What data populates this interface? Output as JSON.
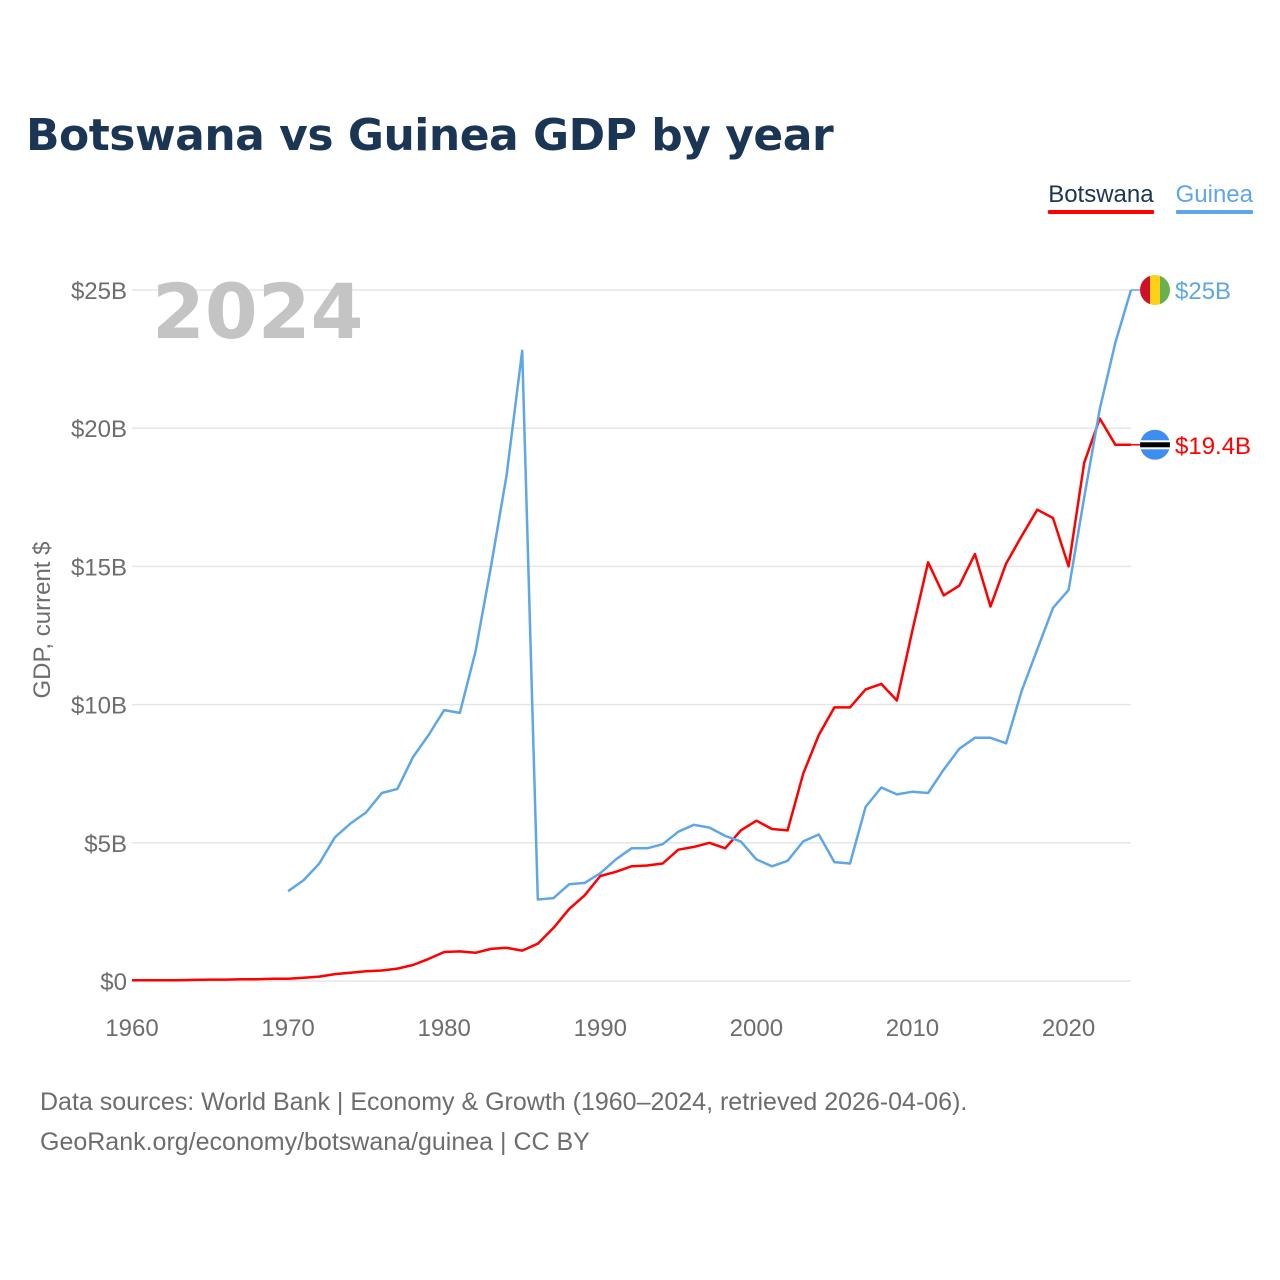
{
  "header": {
    "title": "Botswana vs Guinea GDP by year"
  },
  "legend": [
    {
      "label": "Botswana",
      "color": "#ff0000"
    },
    {
      "label": "Guinea",
      "color": "#5fa6e8"
    }
  ],
  "source": {
    "line1": "Data sources: World Bank | Economy & Growth (1960–2024, retrieved 2026-04-06).",
    "line2": "GeoRank.org/economy/botswana/guinea | CC BY"
  },
  "chart_data": {
    "type": "line",
    "title": "Botswana vs Guinea GDP by year",
    "ylabel": "GDP, current $",
    "xlabel": "",
    "year_watermark": "2024",
    "xlim": [
      1960,
      2024
    ],
    "ylim": [
      0,
      25
    ],
    "x_ticks": [
      1960,
      1970,
      1980,
      1990,
      2000,
      2010,
      2020
    ],
    "y_ticks": [
      0,
      5,
      10,
      15,
      20,
      25
    ],
    "y_tick_labels": [
      "$0",
      "$5B",
      "$10B",
      "$15B",
      "$20B",
      "$25B"
    ],
    "grid": true,
    "series": [
      {
        "name": "Botswana",
        "color": "#ff0000",
        "end_label": "$19.4B",
        "flag": "botswana",
        "x": [
          1960,
          1961,
          1962,
          1963,
          1964,
          1965,
          1966,
          1967,
          1968,
          1969,
          1970,
          1971,
          1972,
          1973,
          1974,
          1975,
          1976,
          1977,
          1978,
          1979,
          1980,
          1981,
          1982,
          1983,
          1984,
          1985,
          1986,
          1987,
          1988,
          1989,
          1990,
          1991,
          1992,
          1993,
          1994,
          1995,
          1996,
          1997,
          1998,
          1999,
          2000,
          2001,
          2002,
          2003,
          2004,
          2005,
          2006,
          2007,
          2008,
          2009,
          2010,
          2011,
          2012,
          2013,
          2014,
          2015,
          2016,
          2017,
          2018,
          2019,
          2020,
          2021,
          2022,
          2023,
          2024
        ],
        "values": [
          0.03,
          0.03,
          0.03,
          0.03,
          0.04,
          0.05,
          0.05,
          0.06,
          0.06,
          0.08,
          0.08,
          0.12,
          0.16,
          0.25,
          0.3,
          0.35,
          0.38,
          0.45,
          0.58,
          0.8,
          1.05,
          1.07,
          1.02,
          1.16,
          1.2,
          1.1,
          1.35,
          1.92,
          2.6,
          3.1,
          3.8,
          3.95,
          4.15,
          4.18,
          4.25,
          4.75,
          4.85,
          5.0,
          4.8,
          5.45,
          5.8,
          5.5,
          5.45,
          7.5,
          8.9,
          9.9,
          9.9,
          10.55,
          10.75,
          10.15,
          12.7,
          15.15,
          13.95,
          14.3,
          15.45,
          13.55,
          15.1,
          16.1,
          17.05,
          16.75,
          15.0,
          18.75,
          20.35,
          19.4,
          19.4
        ]
      },
      {
        "name": "Guinea",
        "color": "#5fa6e8",
        "end_label": "$25B",
        "flag": "guinea",
        "x": [
          1970,
          1971,
          1972,
          1973,
          1974,
          1975,
          1976,
          1977,
          1978,
          1979,
          1980,
          1981,
          1982,
          1983,
          1984,
          1985,
          1986,
          1987,
          1988,
          1989,
          1990,
          1991,
          1992,
          1993,
          1994,
          1995,
          1996,
          1997,
          1998,
          1999,
          2000,
          2001,
          2002,
          2003,
          2004,
          2005,
          2006,
          2007,
          2008,
          2009,
          2010,
          2011,
          2012,
          2013,
          2014,
          2015,
          2016,
          2017,
          2018,
          2019,
          2020,
          2021,
          2022,
          2023,
          2024
        ],
        "values": [
          3.25,
          3.65,
          4.25,
          5.2,
          5.7,
          6.1,
          6.8,
          6.95,
          8.1,
          8.9,
          9.8,
          9.7,
          11.9,
          15.0,
          18.3,
          22.8,
          2.95,
          3.0,
          3.5,
          3.55,
          3.9,
          4.4,
          4.8,
          4.8,
          4.95,
          5.4,
          5.65,
          5.55,
          5.25,
          5.05,
          4.4,
          4.15,
          4.35,
          5.05,
          5.3,
          4.3,
          4.25,
          6.3,
          7.0,
          6.75,
          6.85,
          6.8,
          7.65,
          8.4,
          8.8,
          8.8,
          8.6,
          10.5,
          12.0,
          13.5,
          14.15,
          17.5,
          20.7,
          23.1,
          25.0
        ]
      }
    ]
  }
}
